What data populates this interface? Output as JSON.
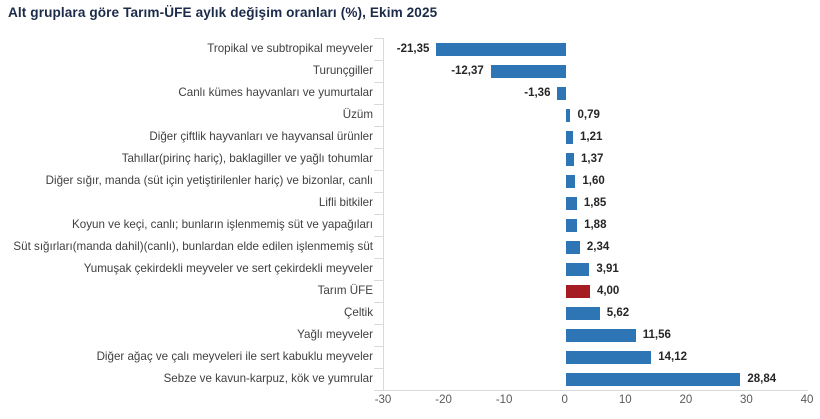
{
  "chart_data": {
    "type": "bar",
    "orientation": "horizontal",
    "title": "Alt gruplara göre Tarım-ÜFE aylık değişim oranları (%), Ekim 2025",
    "categories": [
      "Tropikal ve subtropikal meyveler",
      "Turunçgiller",
      "Canlı kümes hayvanları ve yumurtalar",
      "Üzüm",
      "Diğer çiftlik hayvanları ve hayvansal ürünler",
      "Tahıllar(pirinç hariç), baklagiller ve yağlı tohumlar",
      "Diğer sığır, manda (süt için yetiştirilenler hariç) ve bizonlar, canlı",
      "Lifli bitkiler",
      "Koyun ve keçi, canlı; bunların işlenmemiş süt ve yapağıları",
      "Süt sığırları(manda dahil)(canlı), bunlardan elde edilen işlenmemiş süt",
      "Yumuşak çekirdekli meyveler ve sert çekirdekli meyveler",
      "Tarım ÜFE",
      "Çeltik",
      "Yağlı meyveler",
      "Diğer ağaç ve çalı meyveleri ile sert kabuklu meyveler",
      "Sebze ve kavun-karpuz, kök ve yumrular"
    ],
    "values": [
      -21.35,
      -12.37,
      -1.36,
      0.79,
      1.21,
      1.37,
      1.6,
      1.85,
      1.88,
      2.34,
      3.91,
      4.0,
      5.62,
      11.56,
      14.12,
      28.84
    ],
    "value_labels": [
      "-21,35",
      "-12,37",
      "-1,36",
      "0,79",
      "1,21",
      "1,37",
      "1,60",
      "1,85",
      "1,88",
      "2,34",
      "3,91",
      "4,00",
      "5,62",
      "11,56",
      "14,12",
      "28,84"
    ],
    "xlabel": "",
    "ylabel": "",
    "xlim": [
      -30,
      40
    ],
    "x_ticks": [
      -30,
      -20,
      -10,
      0,
      10,
      20,
      30,
      40
    ],
    "bar_color": "#2e75b6",
    "highlight_category": "Tarım ÜFE",
    "highlight_color": "#a51d22",
    "grid": false,
    "legend_position": "none"
  }
}
